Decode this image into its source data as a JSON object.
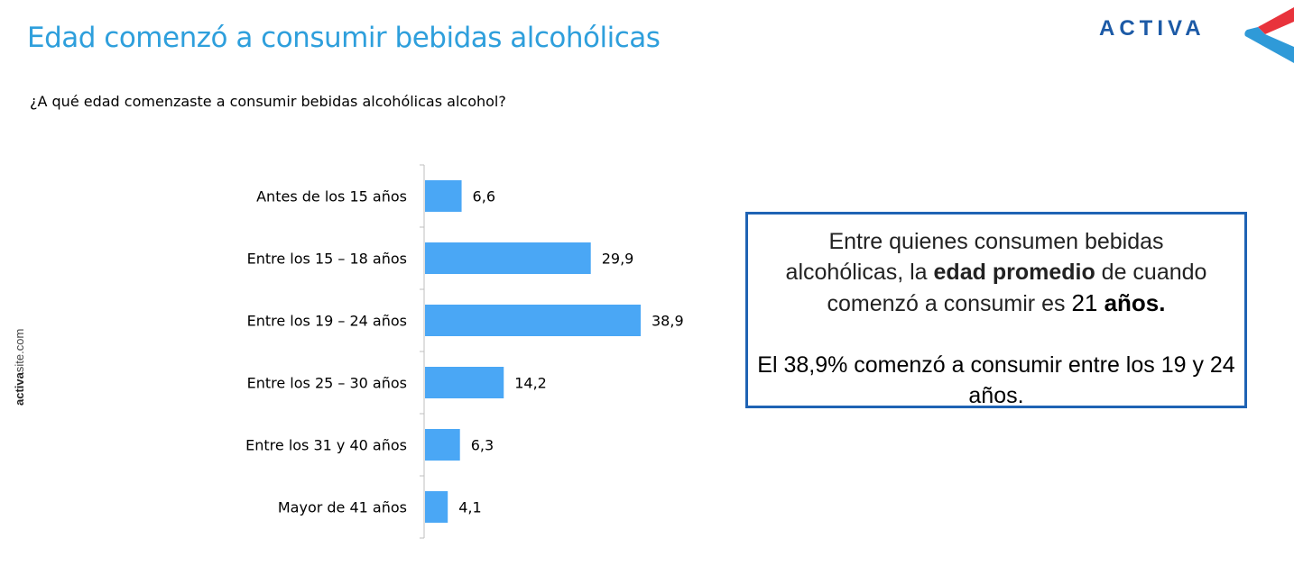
{
  "header": {
    "title": "Edad comenzó a consumir bebidas alcohólicas",
    "question": "¿A qué edad comenzaste a consumir bebidas alcohólicas alcohol?",
    "brand": "ACTIVA",
    "site_bold": "activa",
    "site_rest": "site.com"
  },
  "colors": {
    "title": "#2e9fdc",
    "bar": "#4aa7f5",
    "callout_border": "#1f63b4",
    "brand": "#1c5aa6",
    "brand_accent": "#e8333c"
  },
  "icons": {
    "logo": "activa-chevron-logo"
  },
  "chart_data": {
    "type": "bar",
    "orientation": "horizontal",
    "categories": [
      "Antes de los 15 años",
      "Entre los 15 – 18 años",
      "Entre los 19 – 24 años",
      "Entre los 25 – 30 años",
      "Entre los 31 y 40 años",
      "Mayor de 41 años"
    ],
    "values": [
      6.6,
      29.9,
      38.9,
      14.2,
      6.3,
      4.1
    ],
    "value_labels": [
      "6,6",
      "29,9",
      "38,9",
      "14,2",
      "6,3",
      "4,1"
    ],
    "xlim": [
      0,
      40
    ],
    "grid": false,
    "legend": "none"
  },
  "callout": {
    "line1_pre": "Entre quienes consumen bebidas alcohólicas, la ",
    "line1_bold": "edad promedio",
    "line1_mid": " de cuando comenzó a consumir es ",
    "line1_num": "21",
    "line1_end": " años.",
    "line2": "El 38,9% comenzó a consumir entre los 19 y 24 años."
  }
}
